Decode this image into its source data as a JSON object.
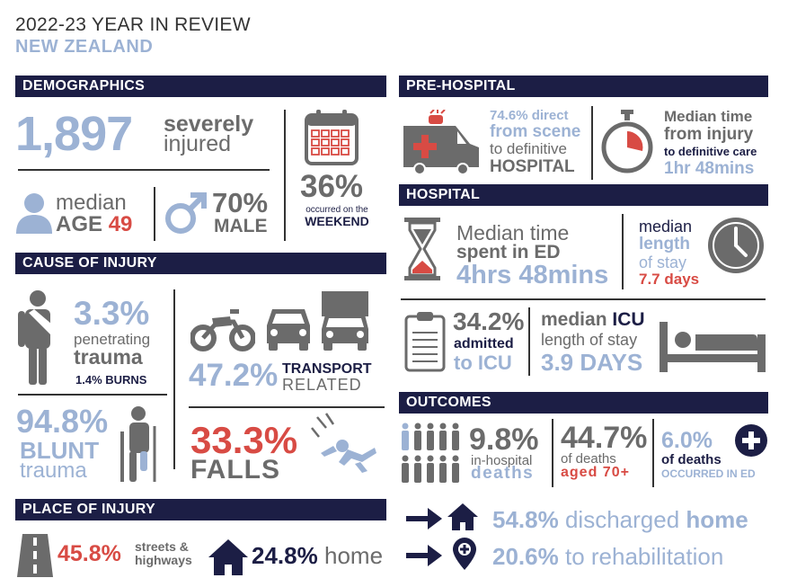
{
  "title": "2022-23 YEAR IN REVIEW",
  "subtitle": "NEW ZEALAND",
  "sections": {
    "demographics": "DEMOGRAPHICS",
    "cause": "CAUSE OF INJURY",
    "place": "PLACE OF INJURY",
    "prehospital": "PRE-HOSPITAL",
    "hospital": "HOSPITAL",
    "outcomes": "OUTCOMES"
  },
  "demographics": {
    "injured_count": "1,897",
    "injured_label_1": "severely",
    "injured_label_2": "injured",
    "age_label_1": "median",
    "age_label_2": "AGE",
    "age_value": "49",
    "male_pct": "70%",
    "male_label": "MALE",
    "weekend_pct": "36%",
    "weekend_label_1": "occurred on the",
    "weekend_label_2": "WEEKEND"
  },
  "cause": {
    "penetrating_pct": "3.3%",
    "penetrating_label_1": "penetrating",
    "penetrating_label_2": "trauma",
    "burns": "1.4% BURNS",
    "blunt_pct": "94.8%",
    "blunt_label_1": "BLUNT",
    "blunt_label_2": "trauma",
    "transport_pct": "47.2%",
    "transport_label_1": "TRANSPORT",
    "transport_label_2": "RELATED",
    "falls_pct": "33.3%",
    "falls_label": "FALLS"
  },
  "place": {
    "streets_pct": "45.8%",
    "streets_label_1": "streets &",
    "streets_label_2": "highways",
    "home_pct": "24.8%",
    "home_label": "home"
  },
  "prehospital": {
    "direct_pct": "74.6% direct",
    "direct_label_1": "from scene",
    "direct_label_2": "to definitive",
    "direct_label_3": "HOSPITAL",
    "median_label_1": "Median time",
    "median_label_2": "from injury",
    "median_label_3": "to definitive care",
    "median_value": "1hr 48mins"
  },
  "hospital": {
    "ed_label_1": "Median time",
    "ed_label_2": "spent in ED",
    "ed_value": "4hrs 48mins",
    "los_label_1": "median",
    "los_label_2": "length",
    "los_label_3": "of stay",
    "los_value": "7.7 days",
    "icu_pct": "34.2%",
    "icu_label_1": "admitted",
    "icu_label_2": "to ICU",
    "icu_median_1": "median",
    "icu_median_2": "ICU",
    "icu_median_3": "length of stay",
    "icu_value": "3.9 DAYS"
  },
  "outcomes": {
    "inhospital_pct": "9.8%",
    "inhospital_label_1": "in-hospital",
    "inhospital_label_2": "deaths",
    "aged_pct": "44.7%",
    "aged_label_1": "of deaths",
    "aged_label_2": "aged 70+",
    "ed_pct": "6.0%",
    "ed_label_1": "of deaths",
    "ed_label_2": "OCCURRED IN ED",
    "discharged_pct": "54.8%",
    "discharged_label_1": "discharged",
    "discharged_label_2": "home",
    "rehab_pct": "20.6%",
    "rehab_label": "to rehabilitation"
  },
  "colors": {
    "navy": "#1c1e45",
    "blue": "#9cb2d4",
    "gray": "#6b6b6b",
    "red": "#d84b44"
  }
}
